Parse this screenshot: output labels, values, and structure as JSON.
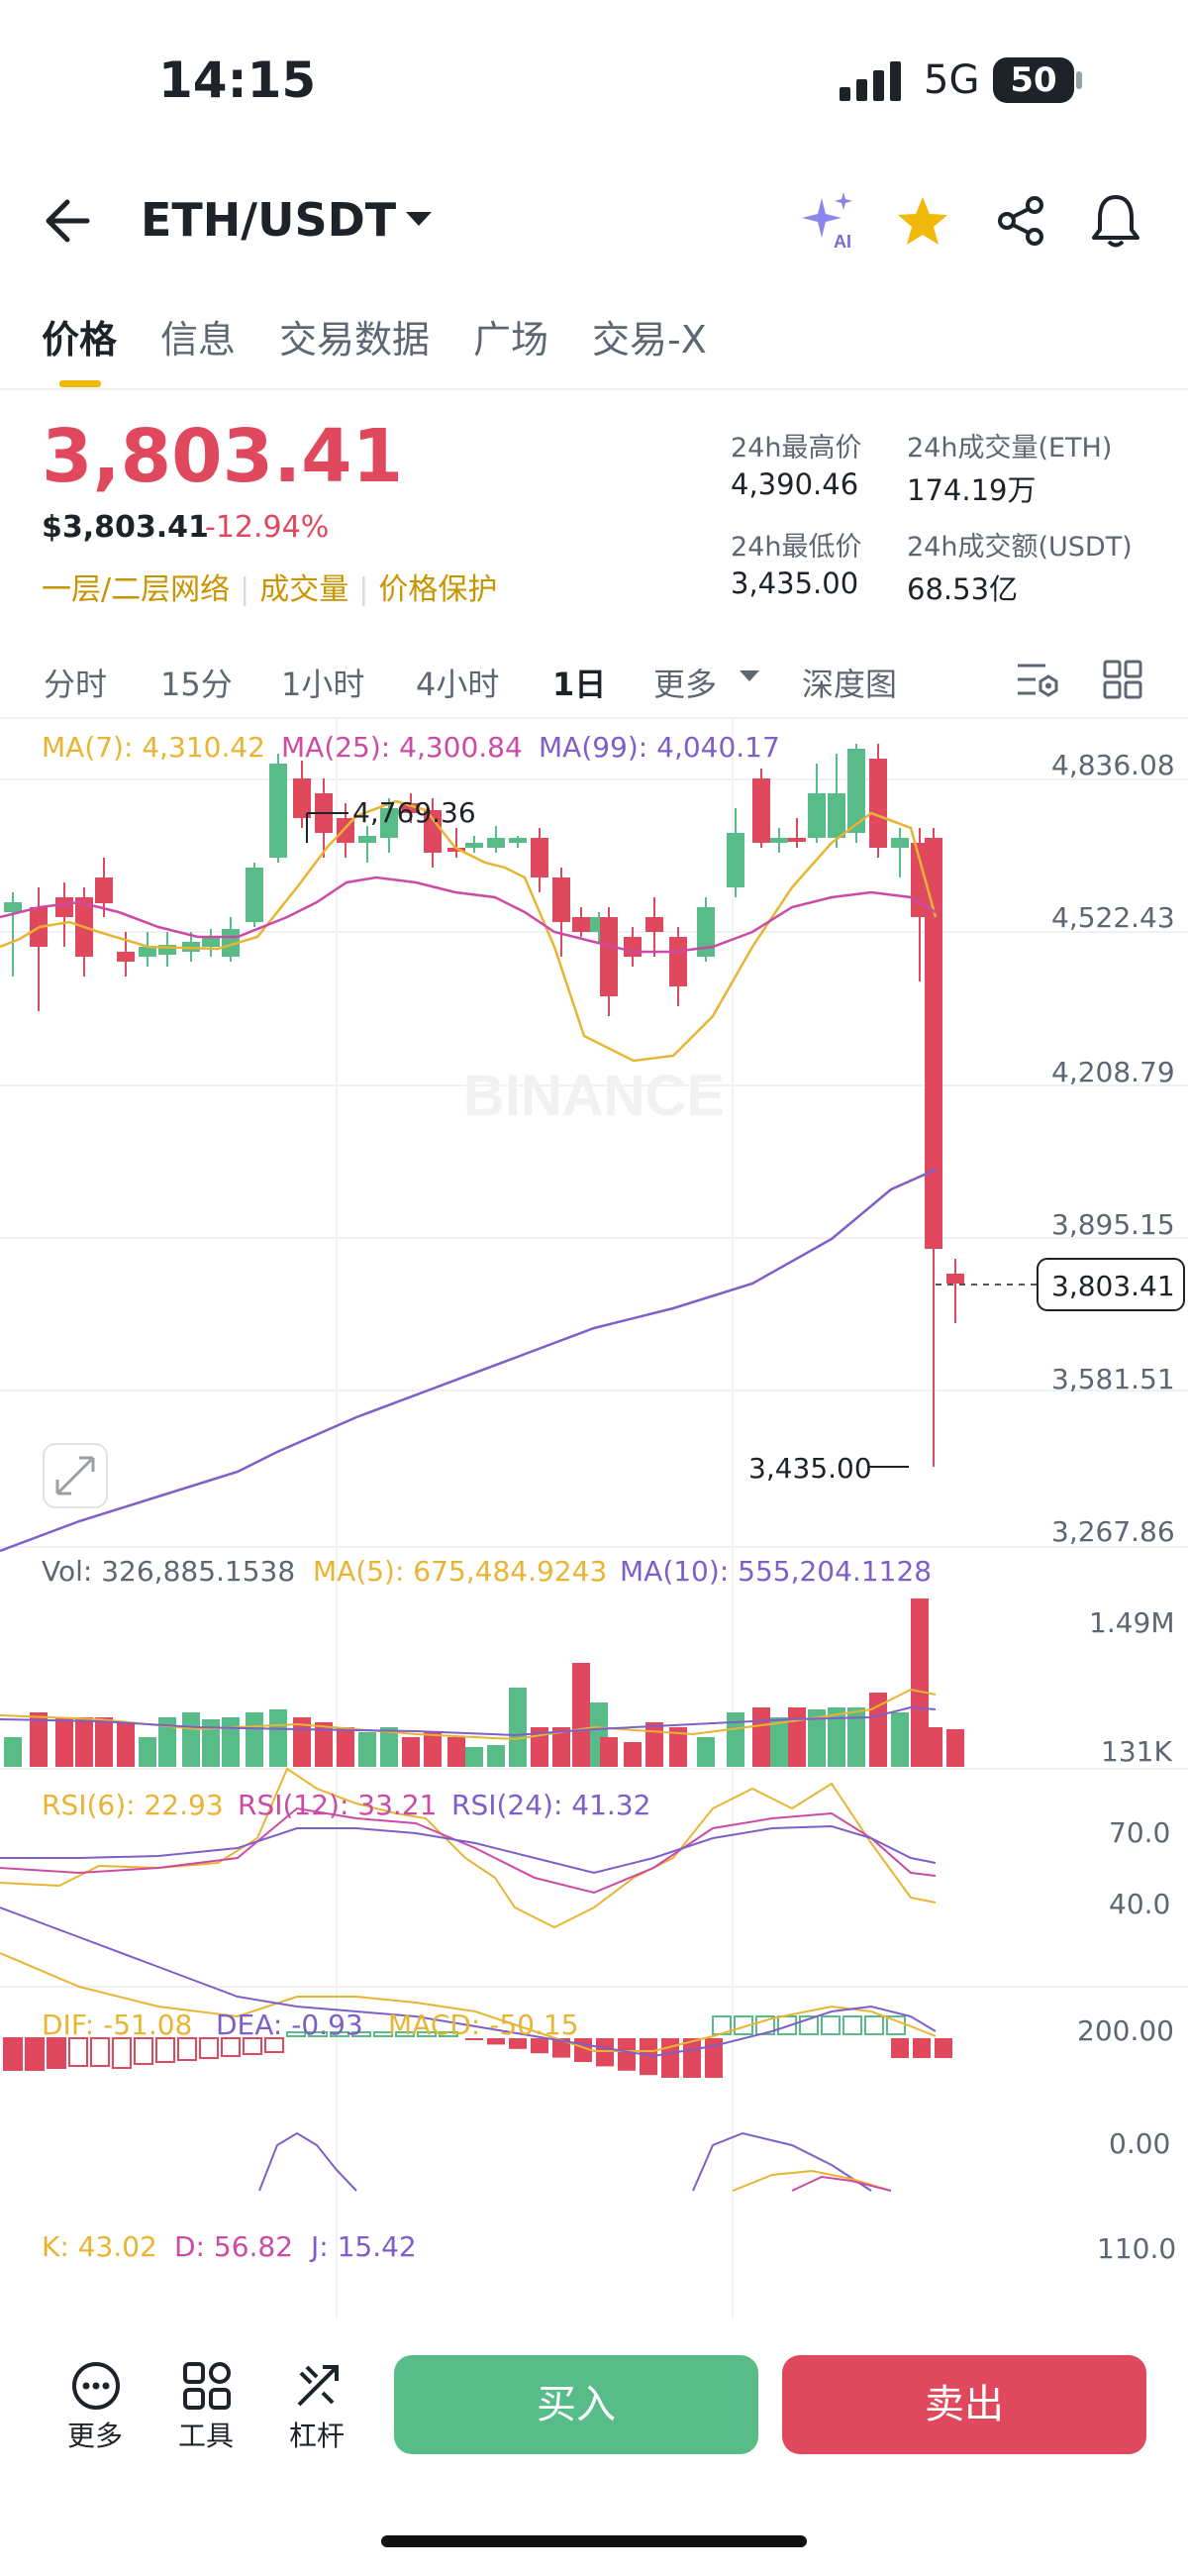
{
  "status_bar": {
    "time": "14:15",
    "network": "5G",
    "battery": "50"
  },
  "header": {
    "pair": "ETH/USDT",
    "ai_label": "AI"
  },
  "tabs": [
    "价格",
    "信息",
    "交易数据",
    "广场",
    "交易-X"
  ],
  "price": {
    "last": "3,803.41",
    "usd": "$3,803.41",
    "change": "-12.94%",
    "links": [
      "一层/二层网络",
      "成交量",
      "价格保护"
    ]
  },
  "stats": {
    "high_label": "24h最高价",
    "high": "4,390.46",
    "vol_eth_label": "24h成交量(ETH)",
    "vol_eth": "174.19万",
    "low_label": "24h最低价",
    "low": "3,435.00",
    "vol_usdt_label": "24h成交额(USDT)",
    "vol_usdt": "68.53亿"
  },
  "intervals": [
    "分时",
    "15分",
    "1小时",
    "4小时",
    "1日",
    "更多",
    "深度图"
  ],
  "chart": {
    "ma_legend": {
      "ma7": "MA(7): 4,310.42",
      "ma25": "MA(25): 4,300.84",
      "ma99": "MA(99): 4,040.17"
    },
    "price_axis": [
      "4,836.08",
      "4,522.43",
      "4,208.79",
      "3,895.15",
      "3,581.51",
      "3,267.86"
    ],
    "high_annotation": "4,769.36",
    "low_annotation": "3,435.00",
    "current_price_tag": "3,803.41",
    "watermark": "BINANCE",
    "vol_legend": {
      "vol": "Vol: 326,885.1538",
      "ma5": "MA(5): 675,484.9243",
      "ma10": "MA(10): 555,204.1128"
    },
    "vol_axis": [
      "1.49M",
      "131K"
    ],
    "rsi_legend": {
      "rsi6": "RSI(6): 22.93",
      "rsi12": "RSI(12): 33.21",
      "rsi24": "RSI(24): 41.32"
    },
    "rsi_axis": [
      "70.0",
      "40.0"
    ],
    "macd_legend": {
      "dif": "DIF: -51.08",
      "dea": "DEA: -0.93",
      "macd": "MACD: -50.15"
    },
    "macd_axis": [
      "200.00",
      "0.00"
    ],
    "kdj_legend": {
      "k": "K: 43.02",
      "d": "D: 56.82",
      "j": "J: 15.42"
    },
    "kdj_axis": [
      "110.0"
    ]
  },
  "colors": {
    "up": "#58bc89",
    "down": "#e0485d",
    "ma7": "#e8b432",
    "ma25": "#cc4aa6",
    "ma99": "#7e5ec8",
    "accent": "#f0b90b"
  },
  "bottom_bar": {
    "more": "更多",
    "tools": "工具",
    "leverage": "杠杆",
    "buy": "买入",
    "sell": "卖出"
  }
}
